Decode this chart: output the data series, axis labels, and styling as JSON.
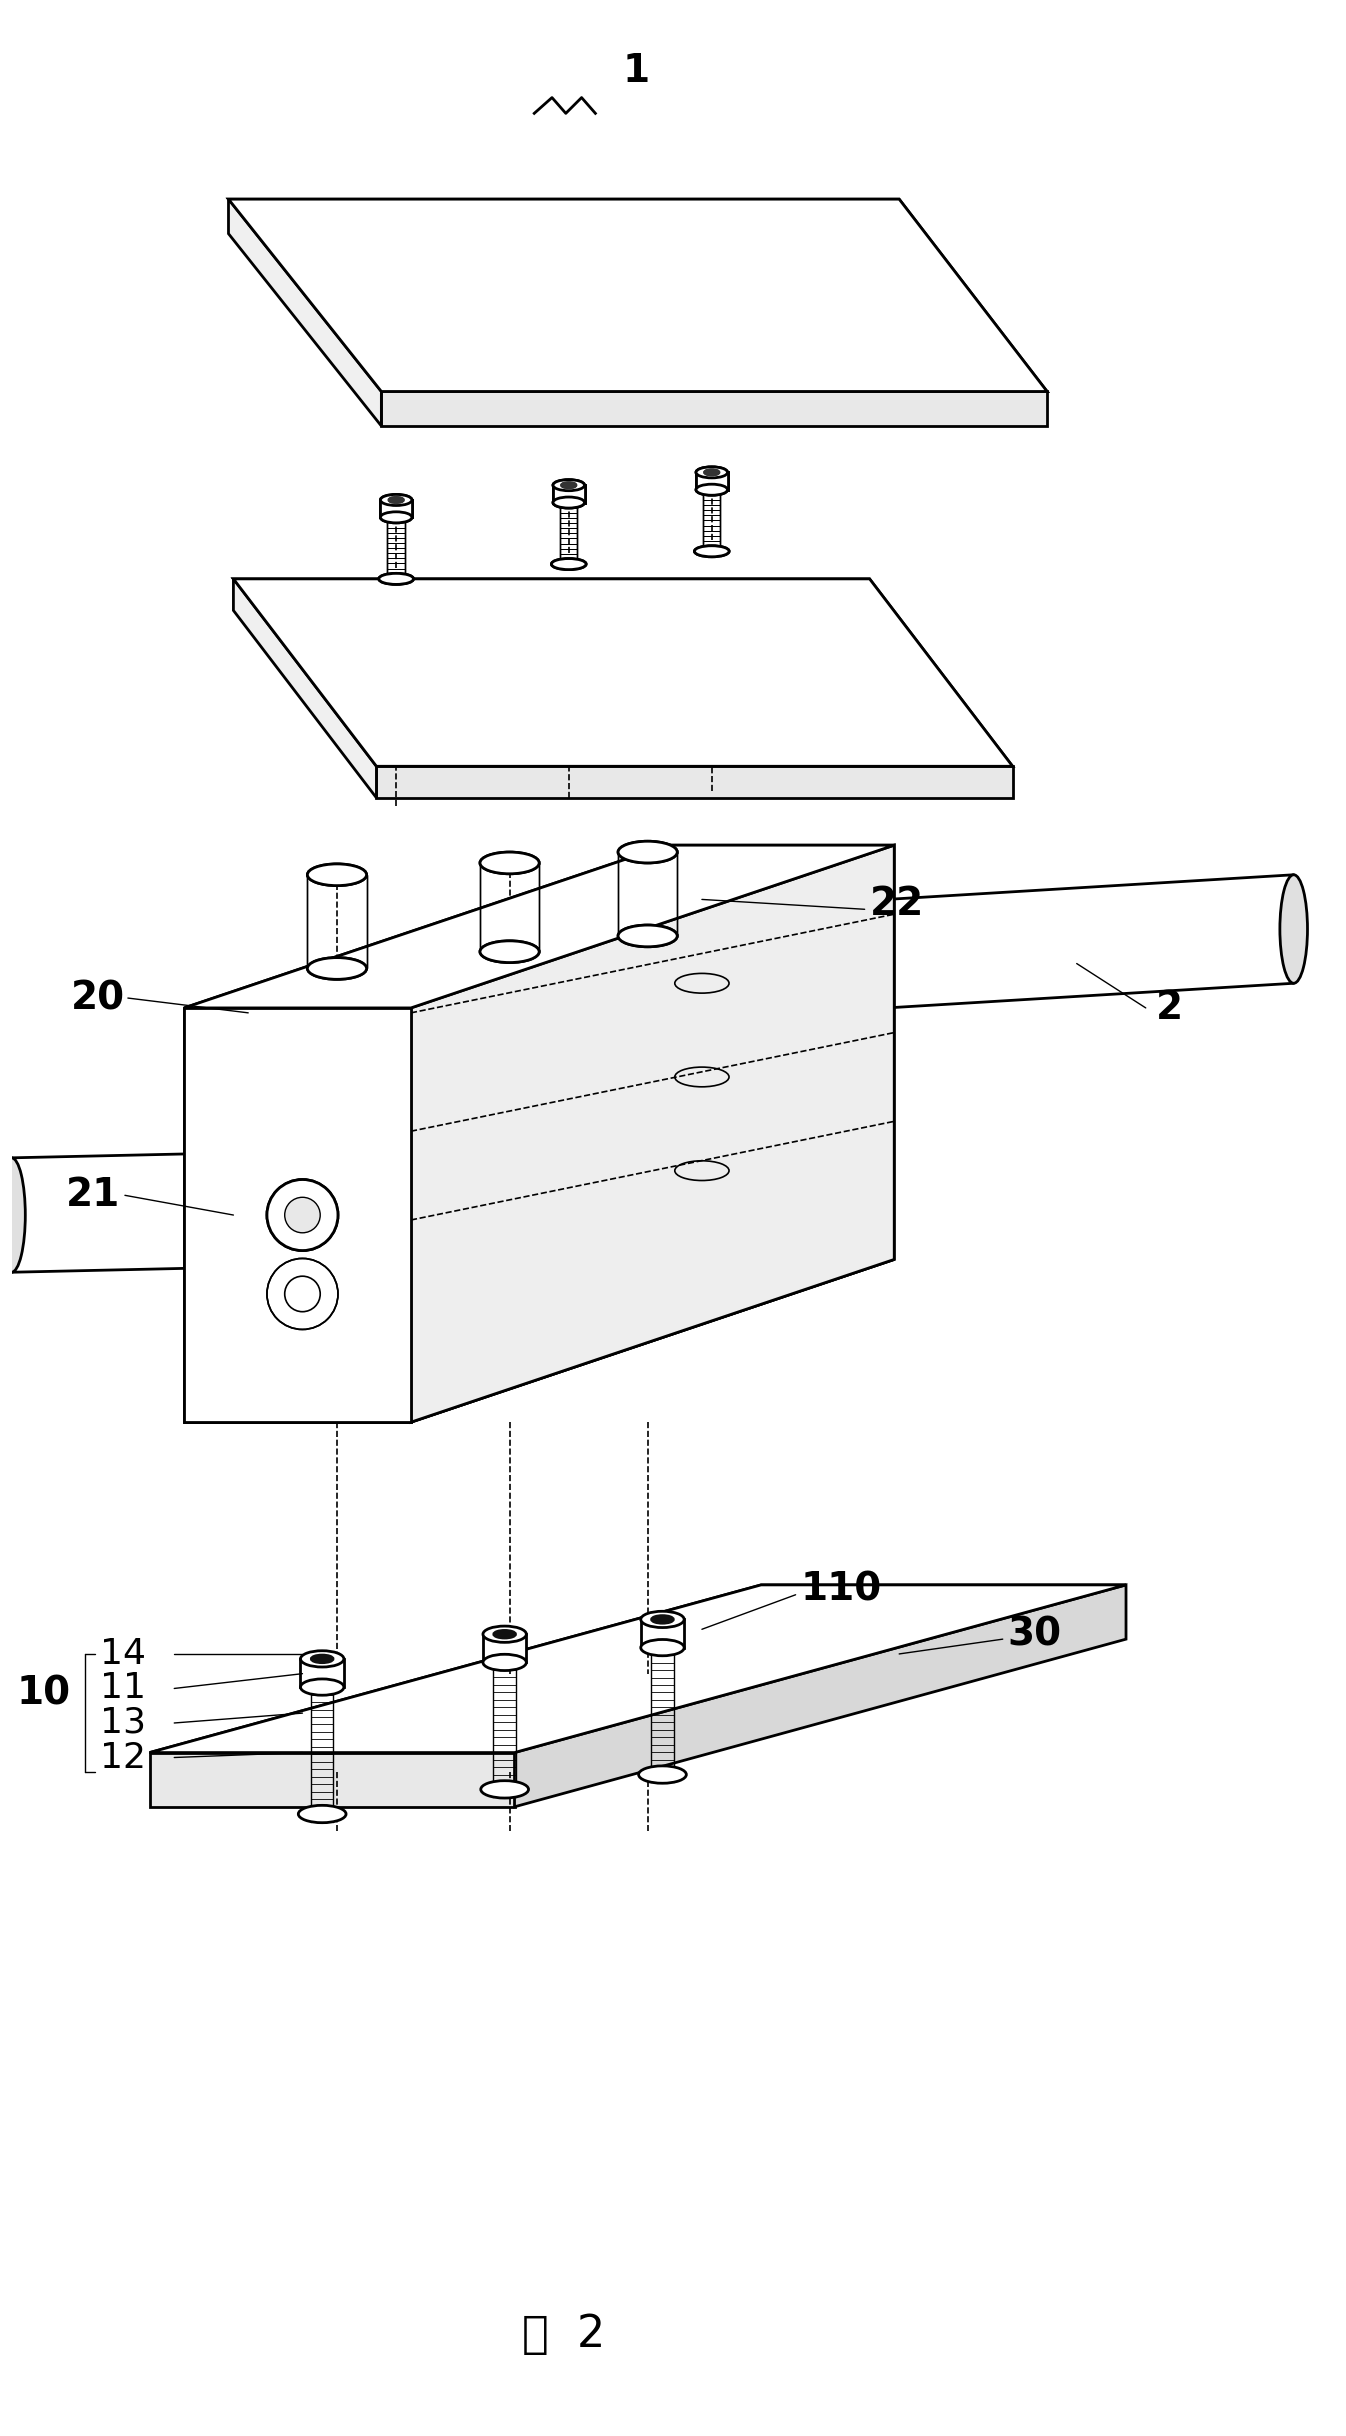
{
  "bg_color": "#ffffff",
  "line_color": "#000000",
  "lw": 2.0,
  "lw_thin": 1.0,
  "lw_dash": 1.2,
  "fig_width": 13.46,
  "fig_height": 24.36,
  "label_1": "1",
  "label_2": "2",
  "label_10": "10",
  "label_11": "11",
  "label_12": "12",
  "label_13": "13",
  "label_14": "14",
  "label_20": "20",
  "label_21": "21",
  "label_22": "22",
  "label_30": "30",
  "label_110": "110",
  "caption": "图  2",
  "fs": 28,
  "fs_cap": 32
}
